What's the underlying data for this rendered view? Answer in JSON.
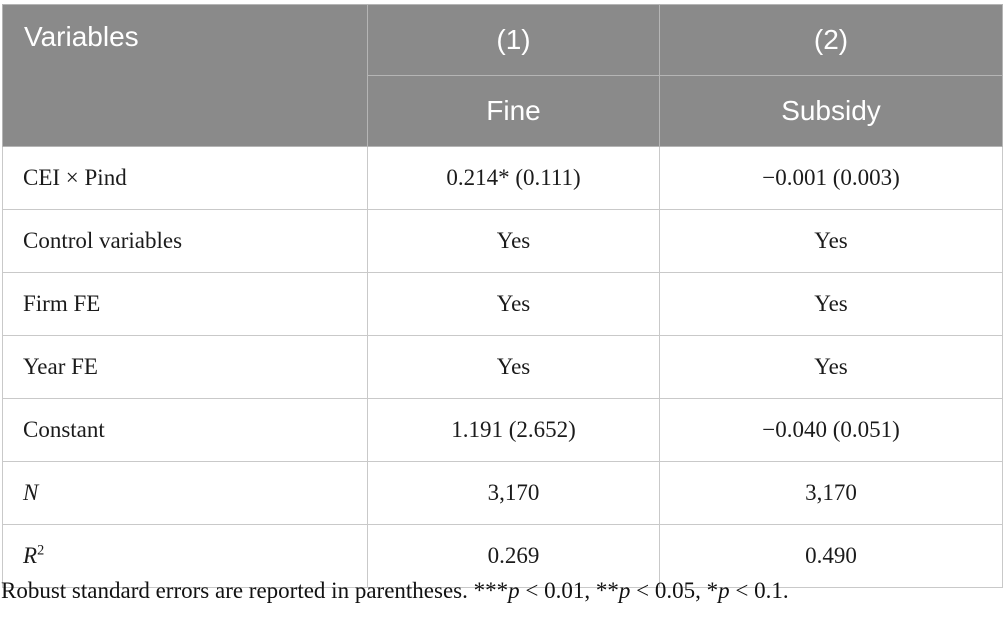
{
  "table": {
    "header": {
      "variables_label": "Variables",
      "col1_number": "(1)",
      "col2_number": "(2)",
      "col1_name": "Fine",
      "col2_name": "Subsidy"
    },
    "rows": [
      {
        "label": "CEI × Pind",
        "fine": "0.214* (0.111)",
        "subsidy": "−0.001 (0.003)"
      },
      {
        "label": "Control variables",
        "fine": "Yes",
        "subsidy": "Yes"
      },
      {
        "label": "Firm FE",
        "fine": "Yes",
        "subsidy": "Yes"
      },
      {
        "label": "Year FE",
        "fine": "Yes",
        "subsidy": "Yes"
      },
      {
        "label": "Constant",
        "fine": "1.191 (2.652)",
        "subsidy": "−0.040 (0.051)"
      },
      {
        "label": "N",
        "fine": "3,170",
        "subsidy": "3,170"
      },
      {
        "label": "R",
        "label_sup": "2",
        "fine": "0.269",
        "subsidy": "0.490"
      }
    ],
    "footnote": {
      "part1": "Robust standard errors are reported in parentheses. ***",
      "p": "p",
      "part2": " < 0.01, **",
      "part3": " < 0.05, *",
      "part4": " < 0.1."
    },
    "colors": {
      "header_bg": "#8a8a8a",
      "header_text": "#ffffff",
      "body_border": "#c9c9c9",
      "body_text": "#1b1b1b"
    }
  }
}
